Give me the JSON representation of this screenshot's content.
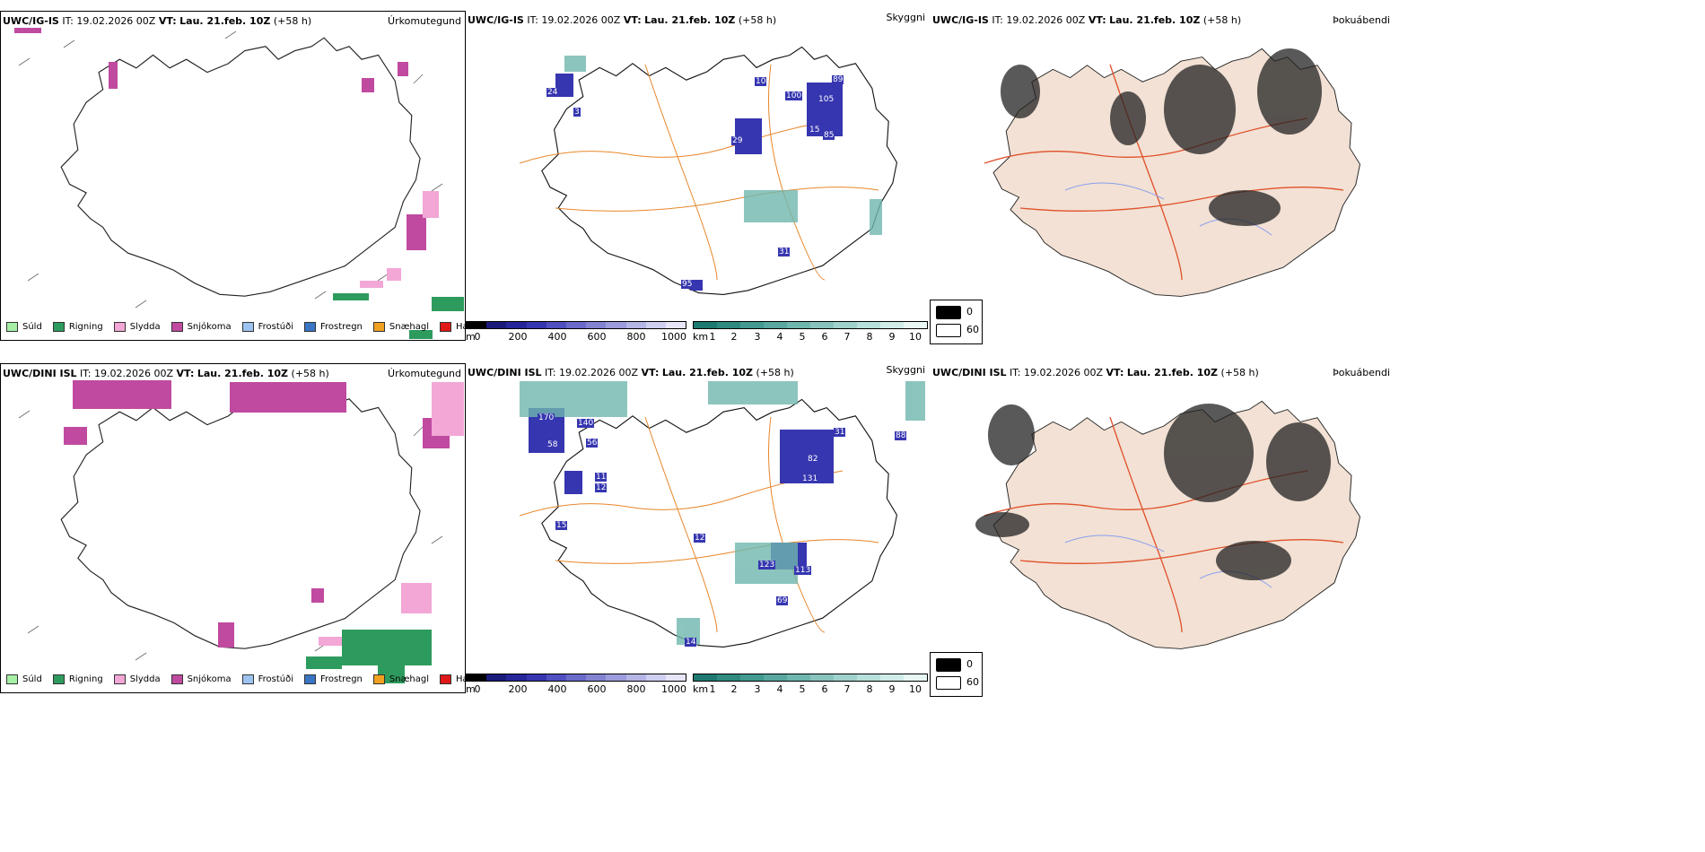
{
  "rows": [
    {
      "model": "UWC/IG-IS",
      "it_label": "IT:",
      "it_value": "19.02.2026 00Z",
      "vt_label": "VT:",
      "vt_value": "Lau. 21.feb. 10Z",
      "lead": "(+58 h)",
      "titles": {
        "precip": "Úrkomutegund",
        "vis": "Skyggni",
        "fog": "Þokuábendi"
      },
      "station_values": [
        "24",
        "3",
        "10",
        "100",
        "89",
        "105",
        "15",
        "85",
        "95",
        "29",
        "31"
      ]
    },
    {
      "model": "UWC/DINI ISL",
      "it_label": "IT:",
      "it_value": "19.02.2026 00Z",
      "vt_label": "VT:",
      "vt_value": "Lau. 21.feb. 10Z",
      "lead": "(+58 h)",
      "titles": {
        "precip": "Úrkomutegund",
        "vis": "Skyggni",
        "fog": "Þokuábendi"
      },
      "station_values": [
        "170",
        "140",
        "58",
        "56",
        "11",
        "12",
        "15",
        "12",
        "82",
        "31",
        "131",
        "88",
        "123",
        "113",
        "69",
        "14"
      ]
    }
  ],
  "precip_legend": [
    {
      "label": "Súld",
      "color": "#a6f0a6"
    },
    {
      "label": "Rigning",
      "color": "#2e9b5e"
    },
    {
      "label": "Slydda",
      "color": "#f2a7d6"
    },
    {
      "label": "Snjókoma",
      "color": "#c04aa0"
    },
    {
      "label": "Frostúði",
      "color": "#9dc3f0"
    },
    {
      "label": "Frostregn",
      "color": "#3a76c4"
    },
    {
      "label": "Snæhagl",
      "color": "#f0a020"
    },
    {
      "label": "Haglél",
      "color": "#e01818"
    }
  ],
  "cloud_base_bar": {
    "unit": "m",
    "ticks": [
      "0",
      "200",
      "400",
      "600",
      "800",
      "1000"
    ],
    "colors": [
      "#000000",
      "#1a1a7a",
      "#26269a",
      "#3636b0",
      "#5050c0",
      "#6a6ac8",
      "#8383d2",
      "#9c9cdc",
      "#b5b5e6",
      "#cfcff0",
      "#e6e6f8"
    ]
  },
  "visibility_bar": {
    "unit": "km",
    "ticks": [
      "1",
      "2",
      "3",
      "4",
      "5",
      "6",
      "7",
      "8",
      "9",
      "10"
    ],
    "colors": [
      "#1e7a70",
      "#2f8a80",
      "#429a90",
      "#58a8a0",
      "#6fb6ae",
      "#88c4bd",
      "#a0d2cc",
      "#b8e0db",
      "#d0ece8",
      "#e8f6f4"
    ]
  },
  "fog_key": [
    {
      "label": "0",
      "color": "#000000"
    },
    {
      "label": "60",
      "color": "#ffffff"
    }
  ],
  "colors": {
    "roads": "#e8862a",
    "fog_roads": "#e0502a",
    "fog_land": "#f2e1d4",
    "fog_rivers": "#8a9ff0",
    "outline": "#111111"
  }
}
